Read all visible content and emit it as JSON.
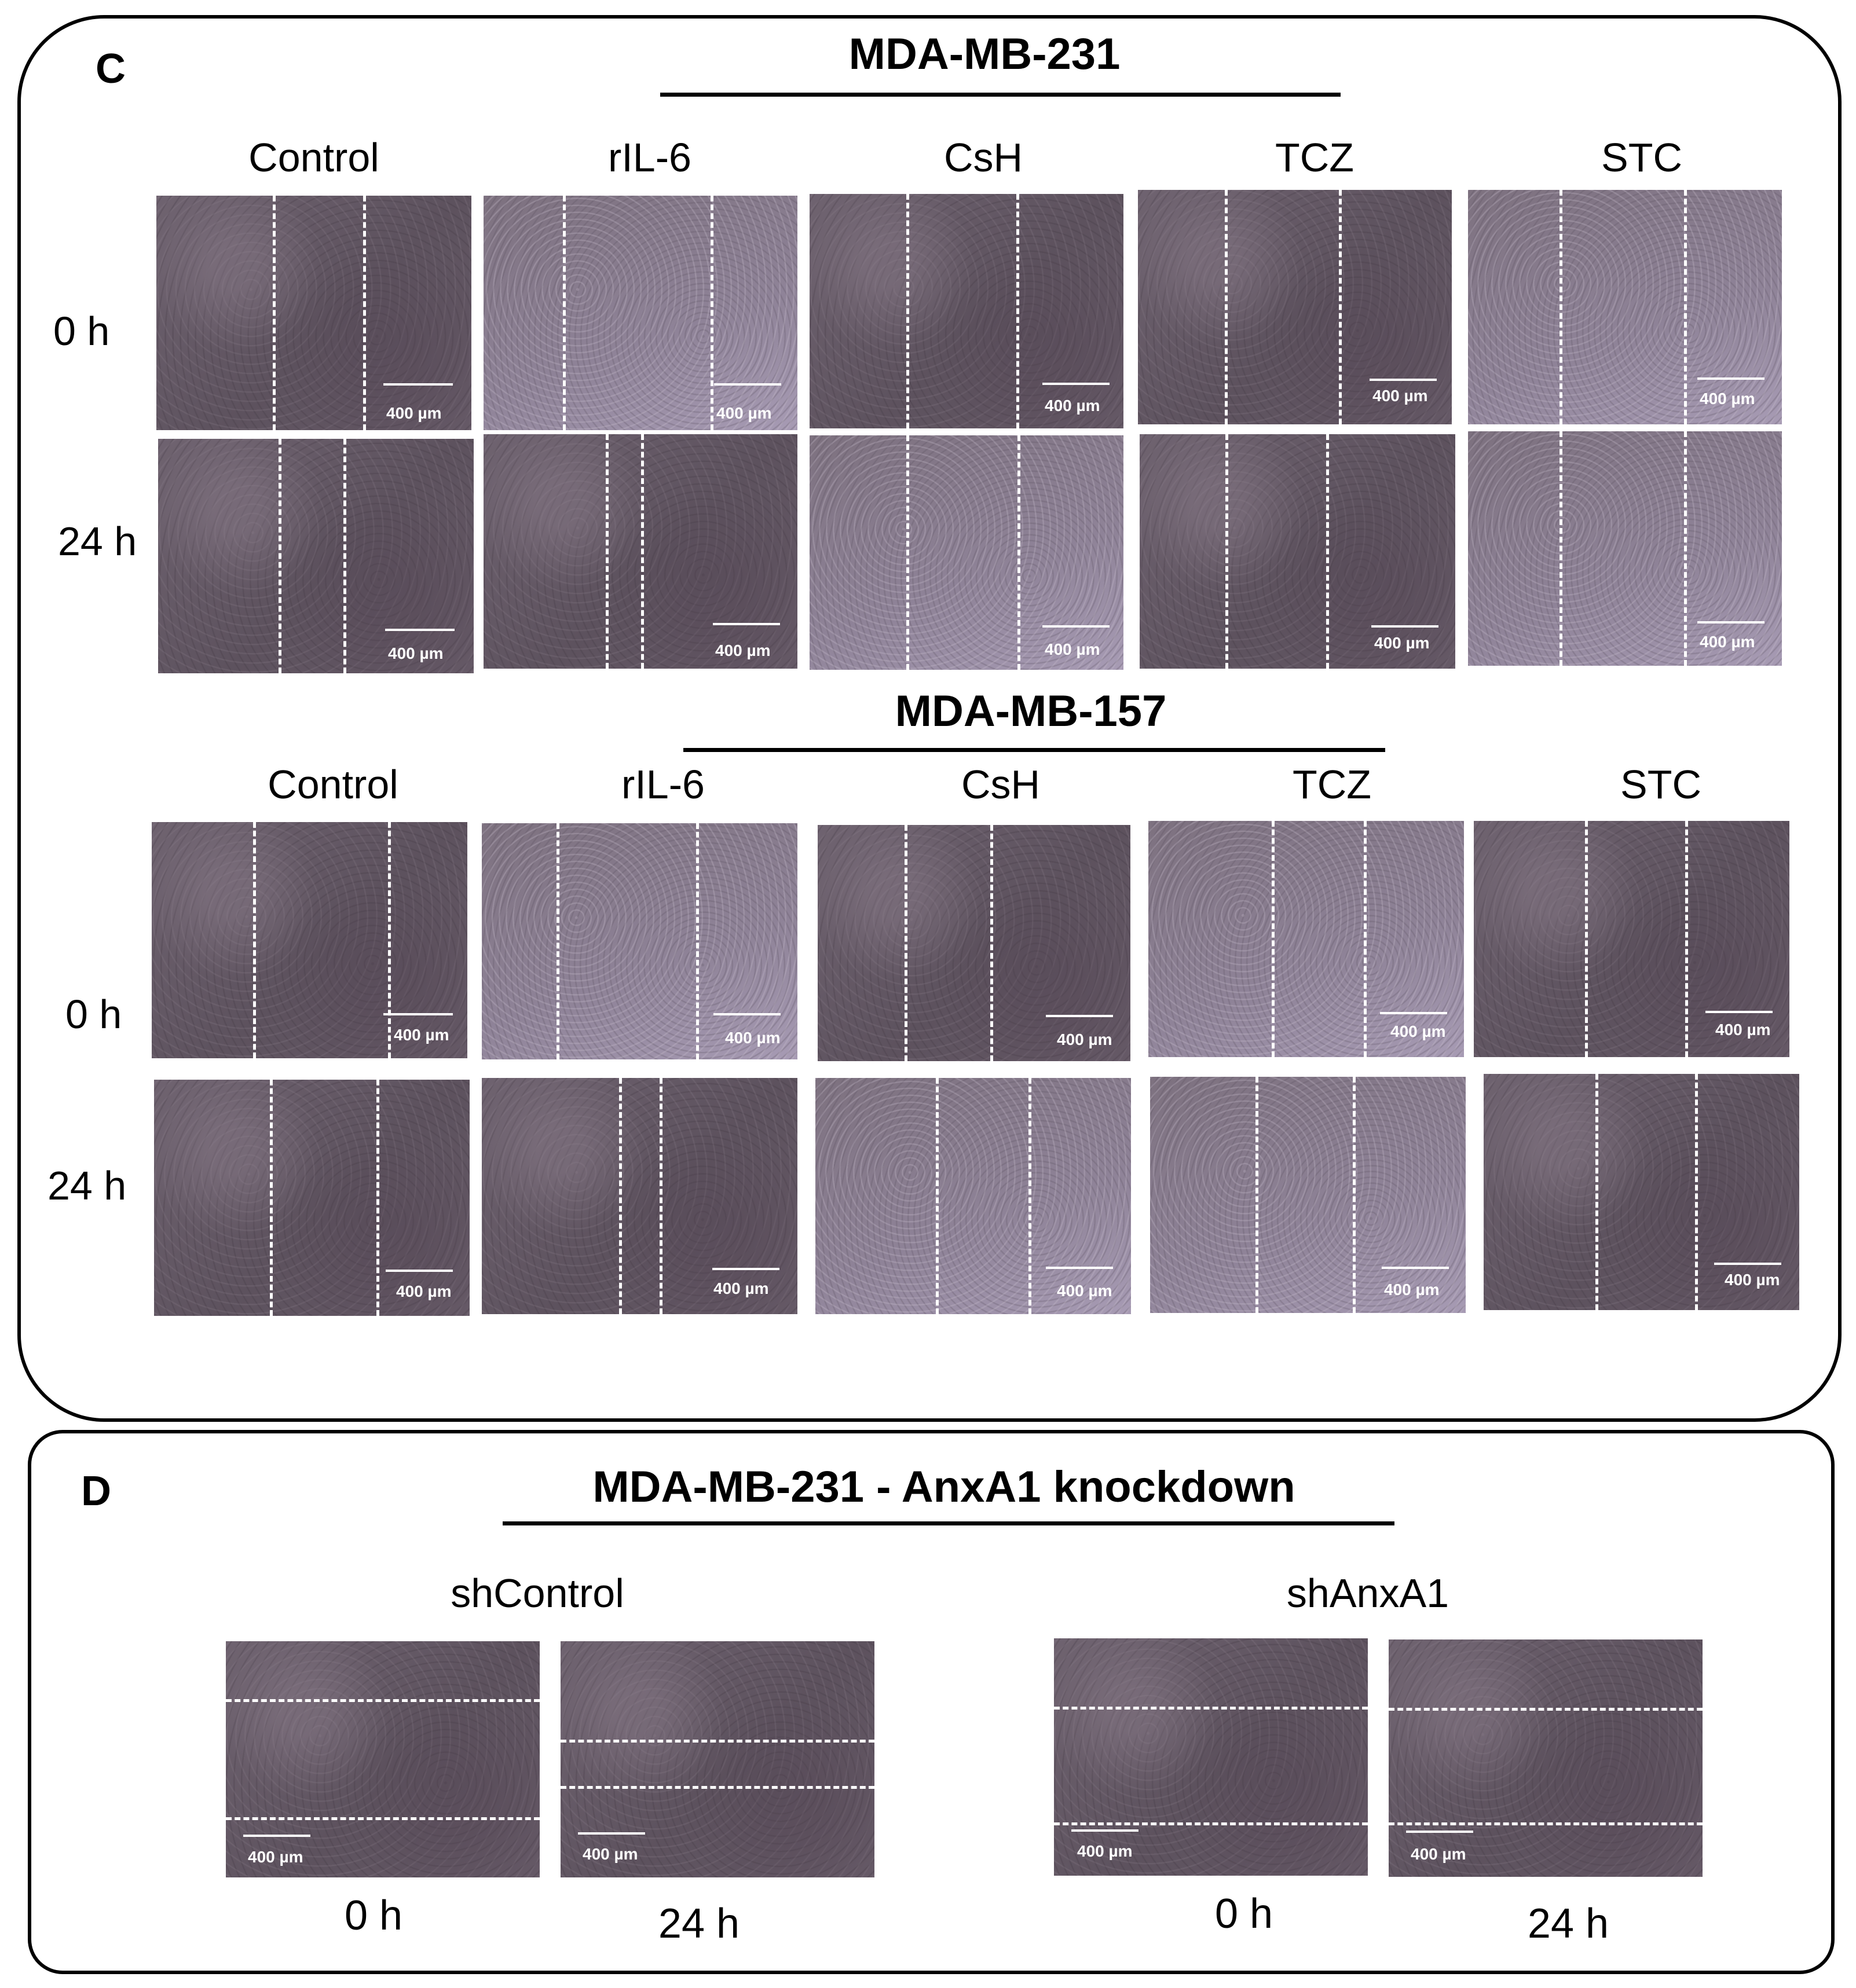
{
  "panel_c": {
    "letter": "C",
    "scale_bar": "400 µm",
    "cell_lines": [
      {
        "title": "MDA-MB-231",
        "treatments": [
          "Control",
          "rIL-6",
          "CsH",
          "TCZ",
          "STC"
        ],
        "timepoints": [
          "0 h",
          "24 h"
        ]
      },
      {
        "title": "MDA-MB-157",
        "treatments": [
          "Control",
          "rIL-6",
          "CsH",
          "TCZ",
          "STC"
        ],
        "timepoints": [
          "0 h",
          "24 h"
        ]
      }
    ]
  },
  "panel_d": {
    "letter": "D",
    "title": "MDA-MB-231 - AnxA1 knockdown",
    "scale_bar": "400 µm",
    "groups": [
      {
        "label": "shControl",
        "timepoints": [
          "0 h",
          "24 h"
        ]
      },
      {
        "label": "shAnxA1",
        "timepoints": [
          "0 h",
          "24 h"
        ]
      }
    ]
  }
}
